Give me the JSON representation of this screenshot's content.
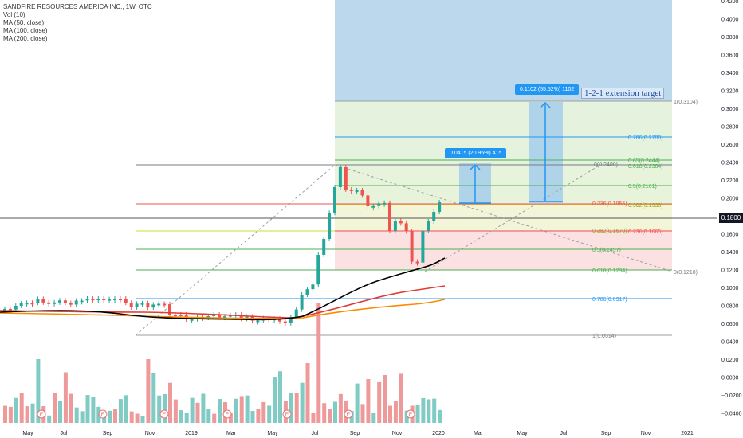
{
  "legend": {
    "symbol": "SANDFIRE RESOURCES AMERICA INC., 1W, OTC",
    "lines": [
      "Vol (10)",
      "MA (50, close)",
      "MA (100, close)",
      "MA (200, close)"
    ]
  },
  "current_price": "0.1800",
  "annotations": {
    "measure_small": "0.0415 (20.95%) 415",
    "measure_large": "0.1102 (55.52%) 1102",
    "note": "1-2-1 extension target"
  },
  "colors": {
    "up": "#26a69a",
    "down": "#ef5350",
    "fib_blue": "#2196f3",
    "ma50": "#000000",
    "ma100": "#e53935",
    "ma200": "#fb8c00"
  },
  "price_axis_labels": [
    "0.4200",
    "0.4000",
    "0.3800",
    "0.3600",
    "0.3400",
    "0.3200",
    "0.3000",
    "0.2800",
    "0.2600",
    "0.2400",
    "0.2200",
    "0.2000",
    "0.1800",
    "0.1600",
    "0.1400",
    "0.1200",
    "0.1000",
    "0.0800",
    "0.0600",
    "0.0400",
    "0.0200",
    "0.0000",
    "−0.0200",
    "−0.0400"
  ],
  "time_axis_labels": [
    "May",
    "Jul",
    "Sep",
    "Nov",
    "2019",
    "Mar",
    "May",
    "Jul",
    "Sep",
    "Nov",
    "2020",
    "Mar",
    "May",
    "Jul",
    "Sep",
    "Nov",
    "2021"
  ],
  "fib_extension_labels": [
    "1(0.3104)",
    "0.786(0.2700)",
    "0.65(0.2444)",
    "0.618(0.2384)",
    "0.5(0.2161)",
    "0.382(0.1938)",
    "0.236(0.1955)",
    "0(0.2400)"
  ],
  "fib_retracement_labels": [
    "0.236(0.1665)",
    "0.382(0.1679)",
    "0.5(0.1457)",
    "0.618(0.1234)",
    "0(0.1218)",
    "0.786(0.0917)",
    "1(0.0514)"
  ],
  "chart_data": {
    "type": "candlestick",
    "title": "SANDFIRE RESOURCES AMERICA INC., 1W, OTC",
    "ylim": [
      -0.045,
      0.425
    ],
    "series_names": [
      "MA (50, close)",
      "MA (100, close)",
      "MA (200, close)"
    ],
    "earnings_markers": 8
  }
}
